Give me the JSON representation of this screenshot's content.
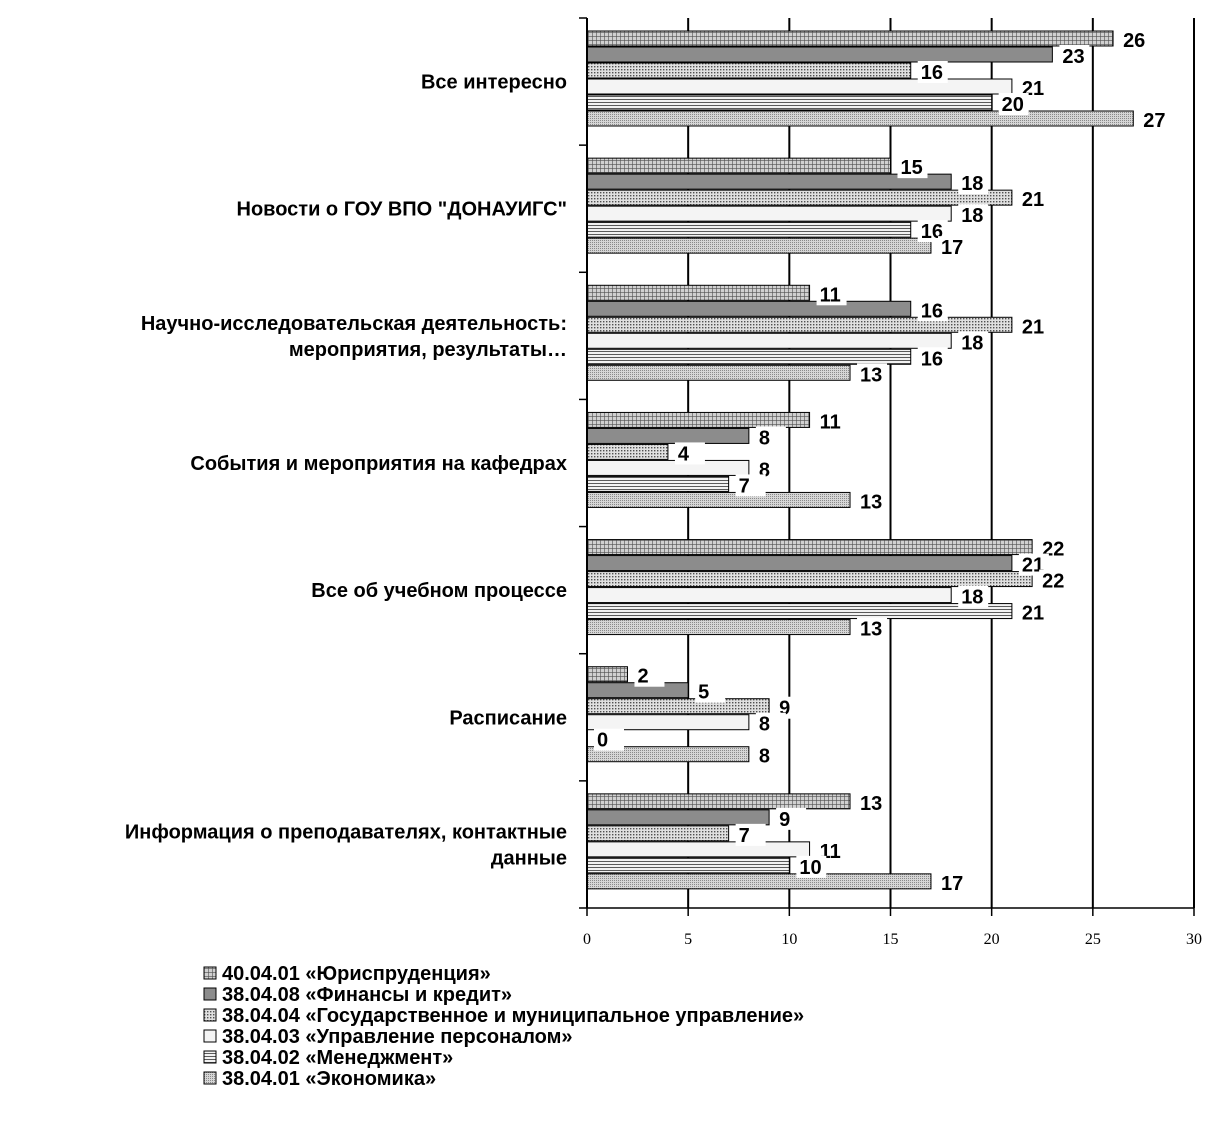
{
  "chart_data": {
    "type": "bar",
    "orientation": "horizontal",
    "title": "",
    "xlabel": "",
    "ylabel": "",
    "xlim": [
      0,
      30
    ],
    "x_ticks": [
      "0",
      "5",
      "10",
      "15",
      "20",
      "25",
      "30"
    ],
    "grid": "vertical",
    "legend_position": "bottom",
    "categories": [
      "Все интересно",
      "Новости о ГОУ ВПО \"ДОНАУИГС\"",
      "Научно-исследовательская деятельность: мероприятия, результаты…",
      "События и мероприятия на кафедрах",
      "Все об учебном процессе",
      "Расписание",
      "Информация о преподавателях, контактные данные"
    ],
    "category_lines": [
      [
        "Все интересно"
      ],
      [
        "Новости о ГОУ ВПО \"ДОНАУИГС\""
      ],
      [
        "Научно-исследовательская деятельность:",
        "мероприятия, результаты…"
      ],
      [
        "События и мероприятия на кафедрах"
      ],
      [
        "Все об учебном процессе"
      ],
      [
        "Расписание"
      ],
      [
        "Информация о преподавателях, контактные",
        "данные"
      ]
    ],
    "series": [
      {
        "name": "40.04.01 «Юриспруденция»",
        "values": [
          26,
          15,
          11,
          11,
          22,
          2,
          13
        ],
        "labels": [
          "26",
          "15",
          "11",
          "11",
          "22",
          "2",
          "13"
        ],
        "color": "#a8a8a8",
        "pattern": "grid"
      },
      {
        "name": "38.04.08 «Финансы и кредит»",
        "values": [
          23,
          18,
          16,
          8,
          21,
          5,
          9
        ],
        "labels": [
          "23",
          "18",
          "16",
          "8",
          "21",
          "5",
          "9"
        ],
        "color": "#8c8c8c",
        "pattern": "solid"
      },
      {
        "name": "38.04.04 «Государственное и муниципальное управление»",
        "values": [
          16,
          21,
          21,
          4,
          22,
          9,
          7
        ],
        "labels": [
          "16",
          "21",
          "21",
          "4",
          "22",
          "9",
          "7"
        ],
        "color": "#b4b4b4",
        "pattern": "dots"
      },
      {
        "name": "38.04.03 «Управление персоналом»",
        "values": [
          21,
          18,
          18,
          8,
          18,
          8,
          11
        ],
        "labels": [
          "21",
          "18",
          "18",
          "8",
          "18",
          "8",
          "11"
        ],
        "color": "#f0f0f0",
        "pattern": "light"
      },
      {
        "name": "38.04.02 «Менеджмент»",
        "values": [
          20,
          16,
          16,
          7,
          21,
          0,
          10
        ],
        "labels": [
          "20",
          "16",
          "16",
          "7",
          "21",
          "0",
          "10"
        ],
        "color": "#c8c8c8",
        "pattern": "hlines"
      },
      {
        "name": "38.04.01 «Экономика»",
        "values": [
          27,
          17,
          13,
          13,
          13,
          8,
          17
        ],
        "labels": [
          "27",
          "17",
          "13",
          "13",
          "13",
          "8",
          "17"
        ],
        "color": "#bebebe",
        "pattern": "fine"
      }
    ]
  }
}
